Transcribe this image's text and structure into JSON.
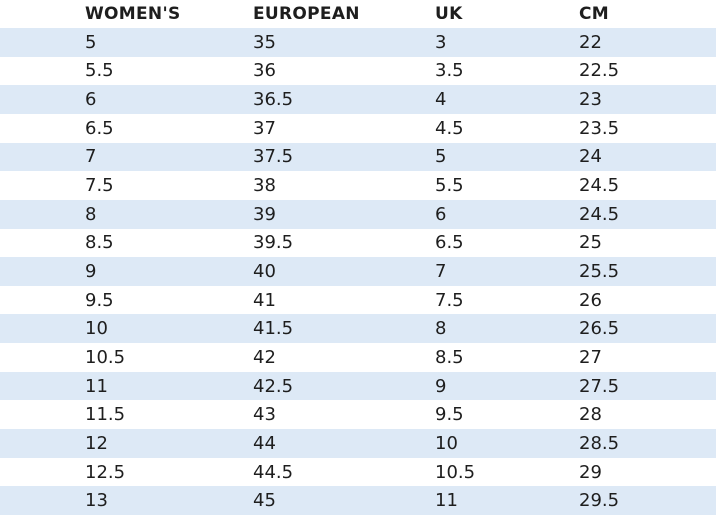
{
  "table": {
    "header": [
      "WOMEN'S",
      "EUROPEAN",
      "UK",
      "CM"
    ],
    "rows": [
      [
        "5",
        "35",
        "3",
        "22"
      ],
      [
        "5.5",
        "36",
        "3.5",
        "22.5"
      ],
      [
        "6",
        "36.5",
        "4",
        "23"
      ],
      [
        "6.5",
        "37",
        "4.5",
        "23.5"
      ],
      [
        "7",
        "37.5",
        "5",
        "24"
      ],
      [
        "7.5",
        "38",
        "5.5",
        "24.5"
      ],
      [
        "8",
        "39",
        "6",
        "24.5"
      ],
      [
        "8.5",
        "39.5",
        "6.5",
        "25"
      ],
      [
        "9",
        "40",
        "7",
        "25.5"
      ],
      [
        "9.5",
        "41",
        "7.5",
        "26"
      ],
      [
        "10",
        "41.5",
        "8",
        "26.5"
      ],
      [
        "10.5",
        "42",
        "8.5",
        "27"
      ],
      [
        "11",
        "42.5",
        "9",
        "27.5"
      ],
      [
        "11.5",
        "43",
        "9.5",
        "28"
      ],
      [
        "12",
        "44",
        "10",
        "28.5"
      ],
      [
        "12.5",
        "44.5",
        "10.5",
        "29"
      ],
      [
        "13",
        "45",
        "11",
        "29.5"
      ]
    ]
  }
}
